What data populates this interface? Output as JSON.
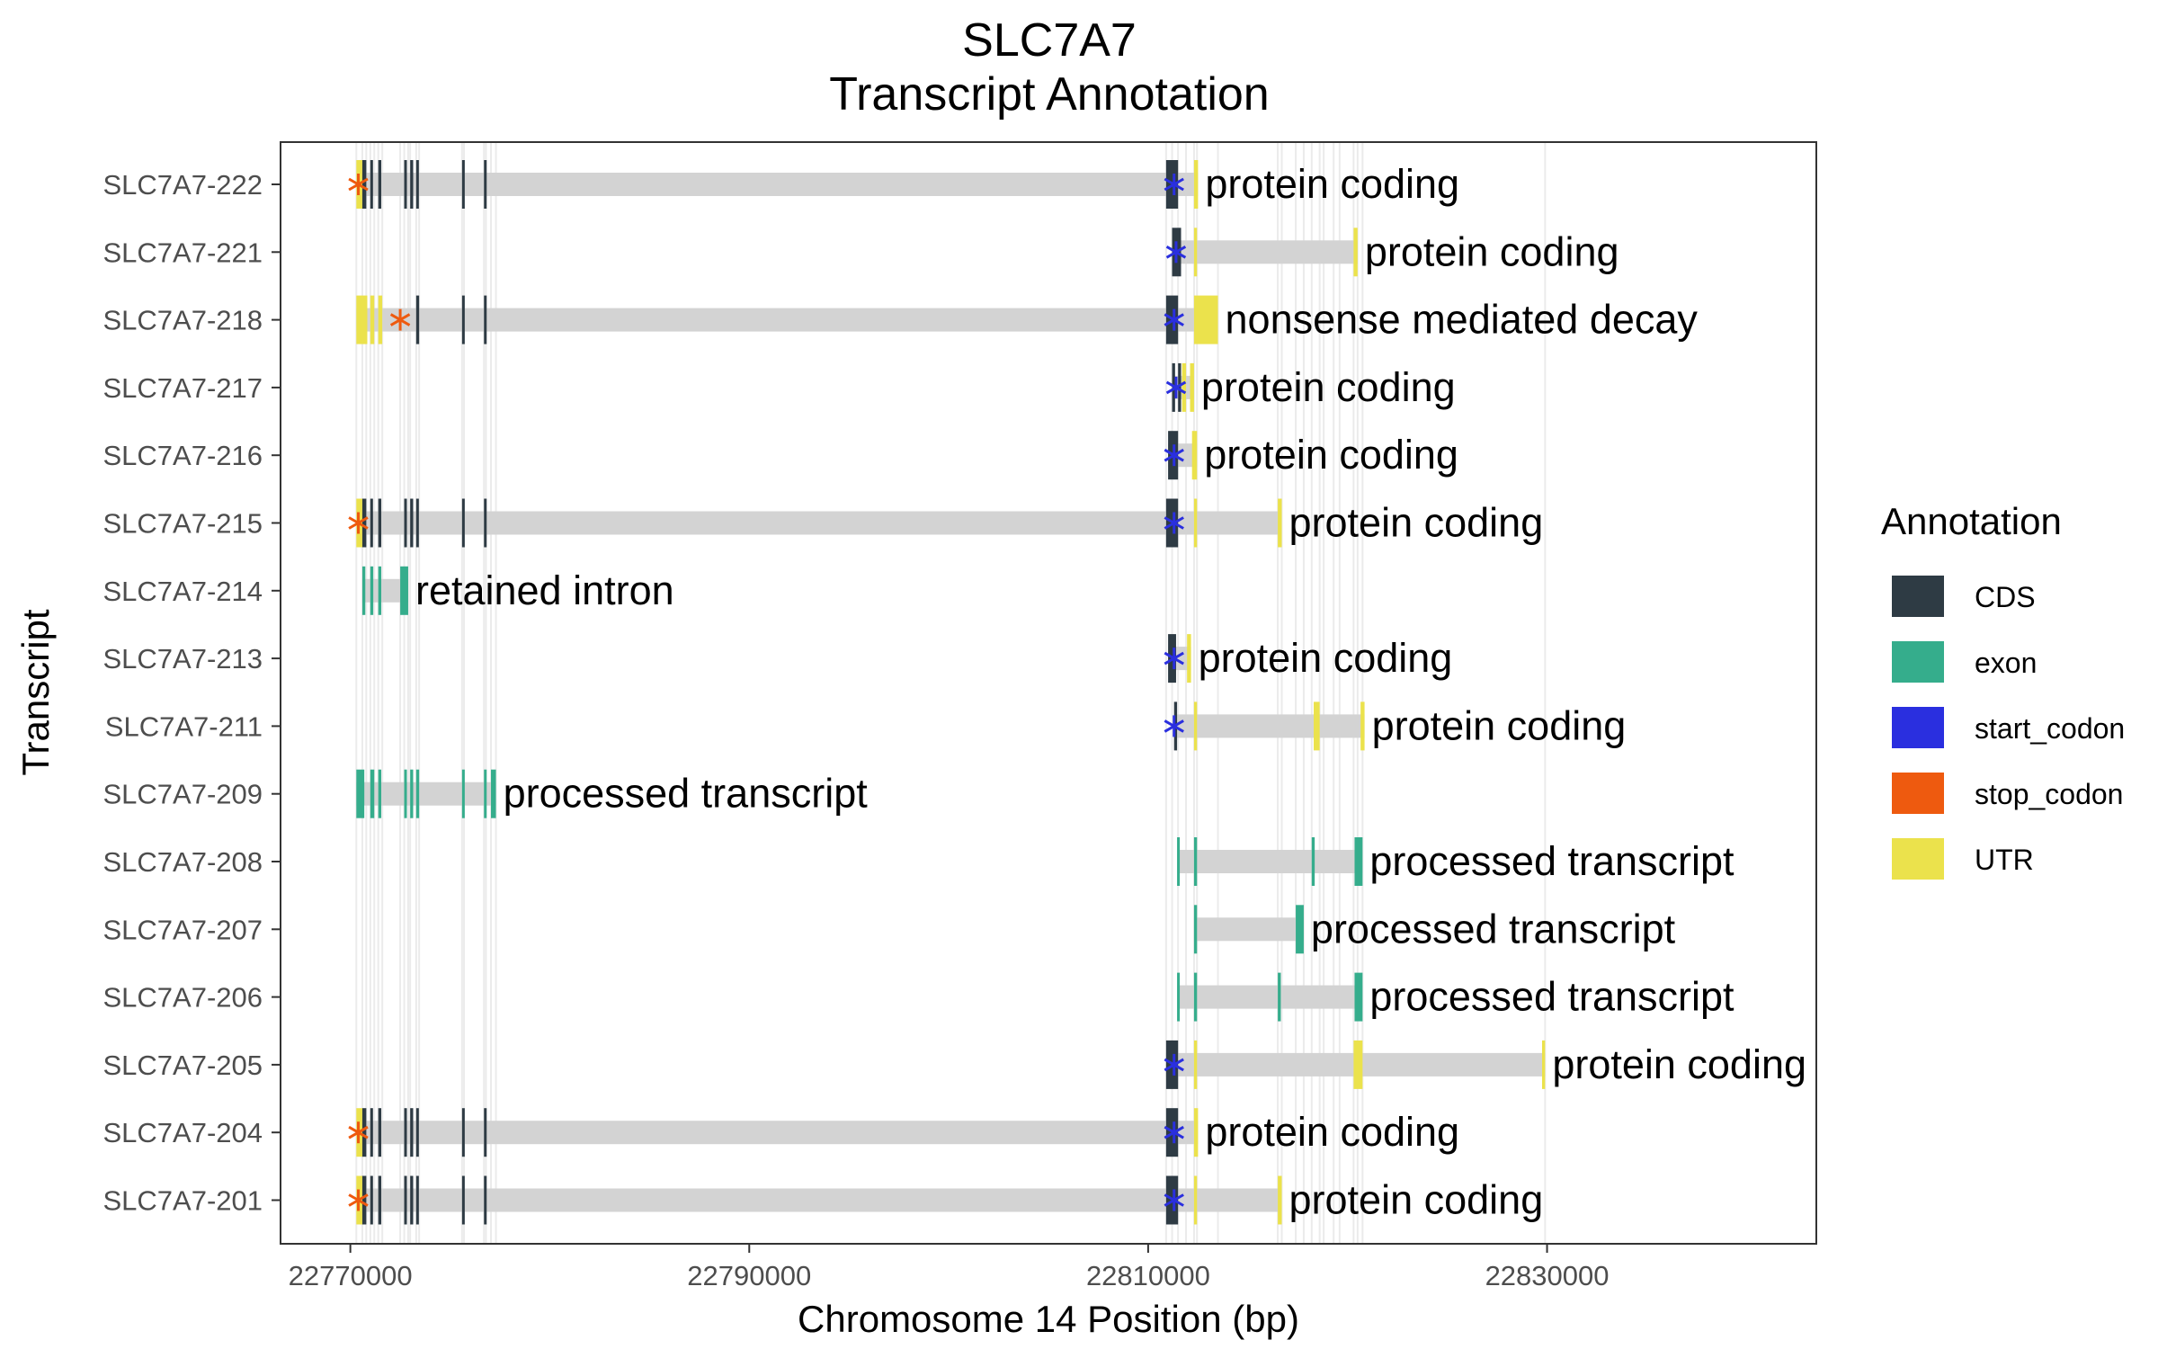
{
  "chart_data": {
    "type": "gantt",
    "title": "SLC7A7",
    "subtitle": "Transcript Annotation",
    "xlabel": "Chromosome 14 Position (bp)",
    "ylabel": "Transcript",
    "xlim": [
      22766500,
      22843500
    ],
    "x_ticks": [
      22770000,
      22790000,
      22810000,
      22830000
    ],
    "x_tick_labels": [
      "22770000",
      "22790000",
      "22810000",
      "22830000"
    ],
    "grid": "vertical lines at feature boundaries",
    "legend": {
      "title": "Annotation",
      "position": "right",
      "items": [
        {
          "name": "CDS",
          "color": "#2e3b44"
        },
        {
          "name": "exon",
          "color": "#35ad8c"
        },
        {
          "name": "start_codon",
          "color": "#2a2fdf"
        },
        {
          "name": "stop_codon",
          "color": "#ee5a0f"
        },
        {
          "name": "UTR",
          "color": "#ebe24c"
        }
      ]
    },
    "transcripts": [
      {
        "name": "SLC7A7-222",
        "biotype": "protein coding",
        "start": 22770300,
        "end": 22812500,
        "features": [
          [
            22770300,
            22770600,
            "UTR"
          ],
          [
            22770600,
            22770800,
            "CDS"
          ],
          [
            22771000,
            22771100,
            "CDS"
          ],
          [
            22771400,
            22771550,
            "CDS"
          ],
          [
            22772700,
            22772800,
            "CDS"
          ],
          [
            22773000,
            22773150,
            "CDS"
          ],
          [
            22773300,
            22773400,
            "CDS"
          ],
          [
            22775600,
            22775700,
            "CDS"
          ],
          [
            22776700,
            22776800,
            "CDS"
          ],
          [
            22810900,
            22811500,
            "CDS"
          ],
          [
            22812300,
            22812500,
            "UTR"
          ]
        ],
        "codons": [
          [
            22770400,
            "stop_codon"
          ],
          [
            22811300,
            "start_codon"
          ]
        ]
      },
      {
        "name": "SLC7A7-221",
        "biotype": "protein coding",
        "start": 22811200,
        "end": 22820500,
        "features": [
          [
            22811200,
            22811650,
            "CDS"
          ],
          [
            22812300,
            22812450,
            "UTR"
          ],
          [
            22820300,
            22820500,
            "UTR"
          ]
        ],
        "codons": [
          [
            22811400,
            "start_codon"
          ]
        ]
      },
      {
        "name": "SLC7A7-218",
        "biotype": "nonsense mediated decay",
        "start": 22770300,
        "end": 22813500,
        "features": [
          [
            22770300,
            22770850,
            "UTR"
          ],
          [
            22771000,
            22771200,
            "UTR"
          ],
          [
            22771400,
            22771600,
            "UTR"
          ],
          [
            22773300,
            22773450,
            "CDS"
          ],
          [
            22775600,
            22775700,
            "CDS"
          ],
          [
            22776700,
            22776800,
            "CDS"
          ],
          [
            22810900,
            22811500,
            "CDS"
          ],
          [
            22812300,
            22813500,
            "UTR"
          ]
        ],
        "codons": [
          [
            22772500,
            "stop_codon"
          ],
          [
            22811300,
            "start_codon"
          ]
        ]
      },
      {
        "name": "SLC7A7-217",
        "biotype": "protein coding",
        "start": 22811200,
        "end": 22812300,
        "features": [
          [
            22811200,
            22811350,
            "CDS"
          ],
          [
            22811500,
            22811650,
            "CDS"
          ],
          [
            22811700,
            22811900,
            "UTR"
          ],
          [
            22812100,
            22812300,
            "UTR"
          ]
        ],
        "codons": [
          [
            22811400,
            "start_codon"
          ]
        ]
      },
      {
        "name": "SLC7A7-216",
        "biotype": "protein coding",
        "start": 22811000,
        "end": 22812450,
        "features": [
          [
            22811000,
            22811500,
            "CDS"
          ],
          [
            22812200,
            22812450,
            "UTR"
          ]
        ],
        "codons": [
          [
            22811300,
            "start_codon"
          ]
        ]
      },
      {
        "name": "SLC7A7-215",
        "biotype": "protein coding",
        "start": 22770300,
        "end": 22816700,
        "features": [
          [
            22770300,
            22770600,
            "UTR"
          ],
          [
            22770600,
            22770800,
            "CDS"
          ],
          [
            22771000,
            22771100,
            "CDS"
          ],
          [
            22771400,
            22771550,
            "CDS"
          ],
          [
            22772700,
            22772800,
            "CDS"
          ],
          [
            22773000,
            22773150,
            "CDS"
          ],
          [
            22773300,
            22773400,
            "CDS"
          ],
          [
            22775600,
            22775700,
            "CDS"
          ],
          [
            22776700,
            22776800,
            "CDS"
          ],
          [
            22810900,
            22811500,
            "CDS"
          ],
          [
            22812300,
            22812450,
            "UTR"
          ],
          [
            22816500,
            22816700,
            "UTR"
          ]
        ],
        "codons": [
          [
            22770400,
            "stop_codon"
          ],
          [
            22811300,
            "start_codon"
          ]
        ]
      },
      {
        "name": "SLC7A7-214",
        "biotype": "retained intron",
        "start": 22770600,
        "end": 22772900,
        "features": [
          [
            22770600,
            22770750,
            "exon"
          ],
          [
            22771000,
            22771150,
            "exon"
          ],
          [
            22771400,
            22771550,
            "exon"
          ],
          [
            22772500,
            22772900,
            "exon"
          ]
        ],
        "codons": []
      },
      {
        "name": "SLC7A7-213",
        "biotype": "protein coding",
        "start": 22811000,
        "end": 22812150,
        "features": [
          [
            22811000,
            22811400,
            "CDS"
          ],
          [
            22811950,
            22812150,
            "UTR"
          ]
        ],
        "codons": [
          [
            22811300,
            "start_codon"
          ]
        ]
      },
      {
        "name": "SLC7A7-211",
        "biotype": "protein coding",
        "start": 22811300,
        "end": 22820850,
        "features": [
          [
            22811300,
            22811450,
            "CDS"
          ],
          [
            22812300,
            22812450,
            "UTR"
          ],
          [
            22818300,
            22818600,
            "UTR"
          ],
          [
            22820650,
            22820850,
            "UTR"
          ]
        ],
        "codons": [
          [
            22811300,
            "start_codon"
          ]
        ]
      },
      {
        "name": "SLC7A7-209",
        "biotype": "processed transcript",
        "start": 22770300,
        "end": 22777300,
        "features": [
          [
            22770300,
            22770700,
            "exon"
          ],
          [
            22771000,
            22771200,
            "exon"
          ],
          [
            22771400,
            22771550,
            "exon"
          ],
          [
            22772700,
            22772800,
            "exon"
          ],
          [
            22773000,
            22773150,
            "exon"
          ],
          [
            22773300,
            22773450,
            "exon"
          ],
          [
            22775600,
            22775700,
            "exon"
          ],
          [
            22776700,
            22776800,
            "exon"
          ],
          [
            22777050,
            22777300,
            "exon"
          ]
        ],
        "codons": []
      },
      {
        "name": "SLC7A7-208",
        "biotype": "processed transcript",
        "start": 22811450,
        "end": 22820750,
        "features": [
          [
            22811450,
            22811550,
            "exon"
          ],
          [
            22812300,
            22812450,
            "exon"
          ],
          [
            22818200,
            22818350,
            "exon"
          ],
          [
            22820350,
            22820750,
            "exon"
          ]
        ],
        "codons": []
      },
      {
        "name": "SLC7A7-207",
        "biotype": "processed transcript",
        "start": 22812300,
        "end": 22817800,
        "features": [
          [
            22812300,
            22812450,
            "exon"
          ],
          [
            22817400,
            22817800,
            "exon"
          ]
        ],
        "codons": []
      },
      {
        "name": "SLC7A7-206",
        "biotype": "processed transcript",
        "start": 22811450,
        "end": 22820750,
        "features": [
          [
            22811450,
            22811550,
            "exon"
          ],
          [
            22812300,
            22812450,
            "exon"
          ],
          [
            22816500,
            22816650,
            "exon"
          ],
          [
            22820350,
            22820750,
            "exon"
          ]
        ],
        "codons": []
      },
      {
        "name": "SLC7A7-205",
        "biotype": "protein coding",
        "start": 22810900,
        "end": 22829900,
        "features": [
          [
            22810900,
            22811500,
            "CDS"
          ],
          [
            22812300,
            22812450,
            "UTR"
          ],
          [
            22820300,
            22820750,
            "UTR"
          ],
          [
            22829750,
            22829900,
            "UTR"
          ]
        ],
        "codons": [
          [
            22811300,
            "start_codon"
          ]
        ]
      },
      {
        "name": "SLC7A7-204",
        "biotype": "protein coding",
        "start": 22770300,
        "end": 22812500,
        "features": [
          [
            22770300,
            22770600,
            "UTR"
          ],
          [
            22770600,
            22770800,
            "CDS"
          ],
          [
            22771000,
            22771100,
            "CDS"
          ],
          [
            22771400,
            22771550,
            "CDS"
          ],
          [
            22772700,
            22772800,
            "CDS"
          ],
          [
            22773000,
            22773150,
            "CDS"
          ],
          [
            22773300,
            22773400,
            "CDS"
          ],
          [
            22775600,
            22775700,
            "CDS"
          ],
          [
            22776700,
            22776800,
            "CDS"
          ],
          [
            22810900,
            22811500,
            "CDS"
          ],
          [
            22812300,
            22812500,
            "UTR"
          ]
        ],
        "codons": [
          [
            22770400,
            "stop_codon"
          ],
          [
            22811300,
            "start_codon"
          ]
        ]
      },
      {
        "name": "SLC7A7-201",
        "biotype": "protein coding",
        "start": 22770300,
        "end": 22816700,
        "features": [
          [
            22770300,
            22770600,
            "UTR"
          ],
          [
            22770600,
            22770800,
            "CDS"
          ],
          [
            22771000,
            22771100,
            "CDS"
          ],
          [
            22771400,
            22771550,
            "CDS"
          ],
          [
            22772700,
            22772800,
            "CDS"
          ],
          [
            22773000,
            22773150,
            "CDS"
          ],
          [
            22773300,
            22773400,
            "CDS"
          ],
          [
            22775600,
            22775700,
            "CDS"
          ],
          [
            22776700,
            22776800,
            "CDS"
          ],
          [
            22810900,
            22811500,
            "CDS"
          ],
          [
            22812300,
            22812450,
            "UTR"
          ],
          [
            22816500,
            22816700,
            "UTR"
          ]
        ],
        "codons": [
          [
            22770400,
            "stop_codon"
          ],
          [
            22811300,
            "start_codon"
          ]
        ]
      }
    ],
    "grid_positions": [
      22770300,
      22770600,
      22770800,
      22771000,
      22771200,
      22771400,
      22771600,
      22772500,
      22772700,
      22772900,
      22773000,
      22773300,
      22773450,
      22775600,
      22775700,
      22776700,
      22776800,
      22777050,
      22777300,
      22810900,
      22811200,
      22811500,
      22811900,
      22812300,
      22812450,
      22813500,
      22816500,
      22816700,
      22817400,
      22817800,
      22818200,
      22818600,
      22818800,
      22819300,
      22819600,
      22820300,
      22820500,
      22820750,
      22829900
    ]
  }
}
